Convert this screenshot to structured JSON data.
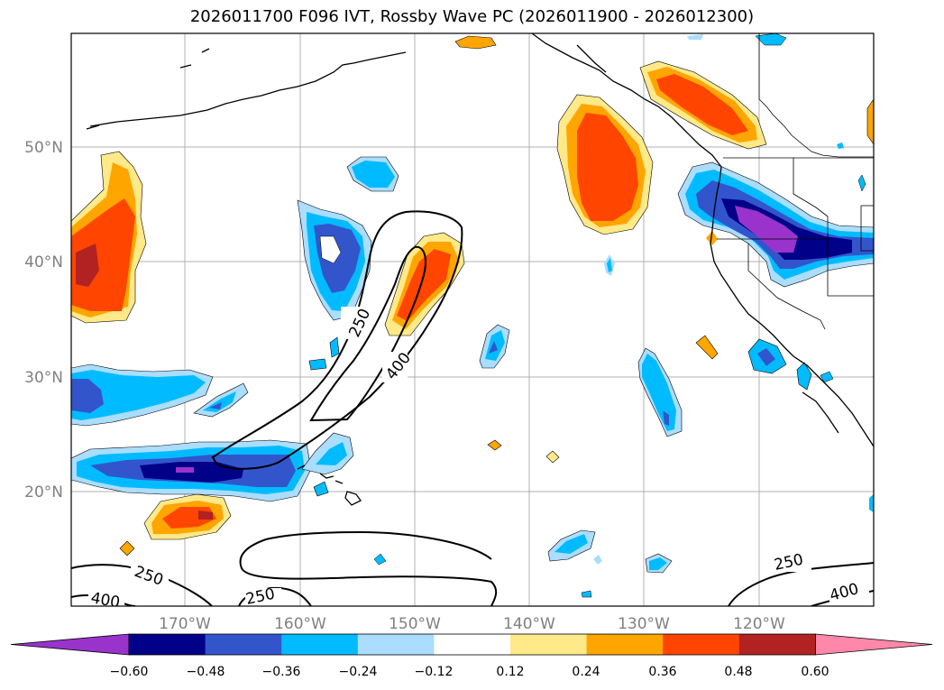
{
  "title": "2026011700 F096 IVT, Rossby Wave PC (2026011900 - 2026012300)",
  "map": {
    "lat_labels": [
      "50°N",
      "40°N",
      "30°N",
      "20°N"
    ],
    "lon_labels": [
      "170°W",
      "160°W",
      "150°W",
      "140°W",
      "130°W",
      "120°W"
    ],
    "contour_labels": [
      "250",
      "400",
      "250",
      "400",
      "250",
      "250",
      "400"
    ]
  },
  "colorbar": {
    "ticks": [
      "−0.60",
      "−0.48",
      "−0.36",
      "−0.24",
      "−0.12",
      "0.12",
      "0.24",
      "0.36",
      "0.48",
      "0.60"
    ],
    "colors": [
      "#9933cc",
      "#000088",
      "#3355cc",
      "#00bbff",
      "#aaddff",
      "#ffffff",
      "#ffe988",
      "#ffa500",
      "#ff4500",
      "#b22222",
      "#ff88aa"
    ]
  }
}
